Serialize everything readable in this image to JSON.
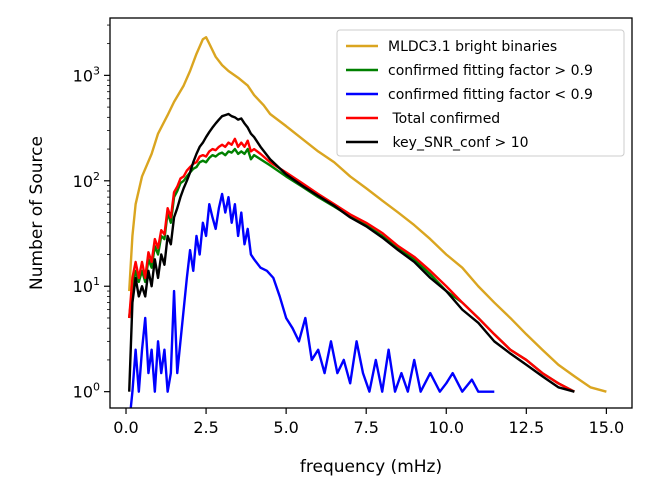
{
  "chart_data": {
    "type": "line",
    "xlabel": "frequency (mHz)",
    "ylabel": "Number of Source",
    "xlim": [
      -0.5,
      15.8
    ],
    "ylim": [
      0.7,
      3500
    ],
    "yscale": "log",
    "xticks": [
      0.0,
      2.5,
      5.0,
      7.5,
      10.0,
      12.5,
      15.0
    ],
    "xtick_labels": [
      "0.0",
      "2.5",
      "5.0",
      "7.5",
      "10.0",
      "12.5",
      "15.0"
    ],
    "yticks": [
      {
        "value": 1,
        "base": "10",
        "exp": "0"
      },
      {
        "value": 10,
        "base": "10",
        "exp": "1"
      },
      {
        "value": 100,
        "base": "10",
        "exp": "2"
      },
      {
        "value": 1000,
        "base": "10",
        "exp": "3"
      }
    ],
    "legend": {
      "placement": "top-right"
    },
    "series": [
      {
        "name": "MLDC3.1 bright binaries",
        "color": "#DAA520",
        "points": [
          [
            0.1,
            9
          ],
          [
            0.2,
            30
          ],
          [
            0.3,
            60
          ],
          [
            0.5,
            110
          ],
          [
            0.8,
            180
          ],
          [
            1.0,
            280
          ],
          [
            1.3,
            420
          ],
          [
            1.5,
            560
          ],
          [
            1.8,
            800
          ],
          [
            2.0,
            1100
          ],
          [
            2.2,
            1600
          ],
          [
            2.4,
            2200
          ],
          [
            2.5,
            2300
          ],
          [
            2.6,
            2000
          ],
          [
            2.8,
            1500
          ],
          [
            3.0,
            1250
          ],
          [
            3.2,
            1100
          ],
          [
            3.5,
            950
          ],
          [
            3.8,
            800
          ],
          [
            4.0,
            650
          ],
          [
            4.3,
            520
          ],
          [
            4.5,
            430
          ],
          [
            5.0,
            330
          ],
          [
            5.5,
            250
          ],
          [
            6.0,
            190
          ],
          [
            6.5,
            150
          ],
          [
            7.0,
            110
          ],
          [
            7.5,
            85
          ],
          [
            8.0,
            65
          ],
          [
            8.5,
            50
          ],
          [
            9.0,
            38
          ],
          [
            9.5,
            28
          ],
          [
            10.0,
            20
          ],
          [
            10.5,
            15
          ],
          [
            11.0,
            10
          ],
          [
            11.5,
            7
          ],
          [
            12.0,
            5
          ],
          [
            12.5,
            3.5
          ],
          [
            13.0,
            2.5
          ],
          [
            13.5,
            1.8
          ],
          [
            14.0,
            1.4
          ],
          [
            14.5,
            1.1
          ],
          [
            15.0,
            1.0
          ]
        ]
      },
      {
        "name": "confirmed fitting factor > 0.9",
        "color": "#008000",
        "points": [
          [
            0.1,
            5
          ],
          [
            0.2,
            10
          ],
          [
            0.3,
            14
          ],
          [
            0.4,
            11
          ],
          [
            0.5,
            14
          ],
          [
            0.6,
            11
          ],
          [
            0.7,
            18
          ],
          [
            0.8,
            15
          ],
          [
            0.9,
            24
          ],
          [
            1.0,
            20
          ],
          [
            1.1,
            30
          ],
          [
            1.2,
            28
          ],
          [
            1.3,
            50
          ],
          [
            1.4,
            40
          ],
          [
            1.5,
            70
          ],
          [
            1.6,
            80
          ],
          [
            1.7,
            95
          ],
          [
            1.8,
            100
          ],
          [
            1.9,
            110
          ],
          [
            2.0,
            120
          ],
          [
            2.1,
            130
          ],
          [
            2.2,
            135
          ],
          [
            2.3,
            150
          ],
          [
            2.4,
            155
          ],
          [
            2.5,
            150
          ],
          [
            2.6,
            165
          ],
          [
            2.7,
            175
          ],
          [
            2.8,
            170
          ],
          [
            2.9,
            180
          ],
          [
            3.0,
            185
          ],
          [
            3.1,
            175
          ],
          [
            3.2,
            190
          ],
          [
            3.3,
            185
          ],
          [
            3.4,
            200
          ],
          [
            3.5,
            180
          ],
          [
            3.6,
            190
          ],
          [
            3.7,
            180
          ],
          [
            3.8,
            200
          ],
          [
            3.9,
            160
          ],
          [
            4.0,
            175
          ],
          [
            4.2,
            160
          ],
          [
            4.5,
            140
          ],
          [
            5.0,
            110
          ],
          [
            5.5,
            88
          ],
          [
            6.0,
            70
          ],
          [
            6.5,
            57
          ],
          [
            7.0,
            46
          ],
          [
            7.5,
            38
          ],
          [
            8.0,
            30
          ],
          [
            8.5,
            23
          ],
          [
            9.0,
            18
          ],
          [
            9.5,
            13
          ],
          [
            10.0,
            9
          ],
          [
            10.5,
            7
          ],
          [
            11.0,
            5
          ],
          [
            11.5,
            3.5
          ],
          [
            12.0,
            2.5
          ],
          [
            12.5,
            2
          ],
          [
            13.0,
            1.5
          ],
          [
            13.5,
            1.2
          ],
          [
            14.0,
            1.0
          ]
        ]
      },
      {
        "name": "confirmed fitting factor < 0.9",
        "color": "#0000FF",
        "points": [
          [
            0.1,
            0.5
          ],
          [
            0.2,
            1
          ],
          [
            0.3,
            2.5
          ],
          [
            0.4,
            1
          ],
          [
            0.5,
            2.5
          ],
          [
            0.6,
            5
          ],
          [
            0.7,
            1.5
          ],
          [
            0.8,
            2.5
          ],
          [
            0.9,
            1
          ],
          [
            1.0,
            3
          ],
          [
            1.1,
            1.5
          ],
          [
            1.2,
            2.5
          ],
          [
            1.3,
            1
          ],
          [
            1.4,
            1.5
          ],
          [
            1.5,
            9
          ],
          [
            1.6,
            1.5
          ],
          [
            1.7,
            3
          ],
          [
            1.8,
            6
          ],
          [
            1.9,
            12
          ],
          [
            2.0,
            22
          ],
          [
            2.1,
            14
          ],
          [
            2.2,
            30
          ],
          [
            2.3,
            20
          ],
          [
            2.4,
            40
          ],
          [
            2.5,
            30
          ],
          [
            2.6,
            60
          ],
          [
            2.7,
            45
          ],
          [
            2.8,
            35
          ],
          [
            2.9,
            55
          ],
          [
            3.0,
            75
          ],
          [
            3.1,
            50
          ],
          [
            3.2,
            70
          ],
          [
            3.3,
            40
          ],
          [
            3.4,
            60
          ],
          [
            3.5,
            30
          ],
          [
            3.6,
            50
          ],
          [
            3.7,
            25
          ],
          [
            3.8,
            35
          ],
          [
            3.9,
            20
          ],
          [
            4.0,
            18
          ],
          [
            4.2,
            15
          ],
          [
            4.4,
            14
          ],
          [
            4.6,
            12
          ],
          [
            4.8,
            8
          ],
          [
            5.0,
            5
          ],
          [
            5.2,
            4
          ],
          [
            5.4,
            3
          ],
          [
            5.6,
            5
          ],
          [
            5.8,
            2
          ],
          [
            6.0,
            2.5
          ],
          [
            6.2,
            1.5
          ],
          [
            6.4,
            3
          ],
          [
            6.6,
            1.5
          ],
          [
            6.8,
            2
          ],
          [
            7.0,
            1.2
          ],
          [
            7.2,
            3
          ],
          [
            7.4,
            1.5
          ],
          [
            7.6,
            1
          ],
          [
            7.8,
            2
          ],
          [
            8.0,
            1
          ],
          [
            8.2,
            2.5
          ],
          [
            8.4,
            1
          ],
          [
            8.6,
            1.5
          ],
          [
            8.8,
            1
          ],
          [
            9.0,
            2
          ],
          [
            9.2,
            1
          ],
          [
            9.5,
            1.5
          ],
          [
            9.8,
            1
          ],
          [
            10.0,
            1.2
          ],
          [
            10.2,
            1.5
          ],
          [
            10.5,
            1
          ],
          [
            10.8,
            1.3
          ],
          [
            11.0,
            1
          ],
          [
            11.5,
            1
          ]
        ]
      },
      {
        "name": " Total confirmed",
        "color": "#FF0000",
        "points": [
          [
            0.1,
            5
          ],
          [
            0.2,
            12
          ],
          [
            0.3,
            17
          ],
          [
            0.4,
            12
          ],
          [
            0.5,
            17
          ],
          [
            0.6,
            12
          ],
          [
            0.7,
            21
          ],
          [
            0.8,
            17
          ],
          [
            0.9,
            28
          ],
          [
            1.0,
            23
          ],
          [
            1.1,
            34
          ],
          [
            1.2,
            31
          ],
          [
            1.3,
            55
          ],
          [
            1.4,
            45
          ],
          [
            1.5,
            78
          ],
          [
            1.6,
            88
          ],
          [
            1.7,
            105
          ],
          [
            1.8,
            110
          ],
          [
            1.9,
            125
          ],
          [
            2.0,
            135
          ],
          [
            2.1,
            145
          ],
          [
            2.2,
            150
          ],
          [
            2.3,
            170
          ],
          [
            2.4,
            175
          ],
          [
            2.5,
            170
          ],
          [
            2.6,
            190
          ],
          [
            2.7,
            200
          ],
          [
            2.8,
            195
          ],
          [
            2.9,
            210
          ],
          [
            3.0,
            220
          ],
          [
            3.1,
            210
          ],
          [
            3.2,
            230
          ],
          [
            3.3,
            220
          ],
          [
            3.4,
            250
          ],
          [
            3.5,
            210
          ],
          [
            3.6,
            230
          ],
          [
            3.7,
            210
          ],
          [
            3.8,
            240
          ],
          [
            3.9,
            190
          ],
          [
            4.0,
            200
          ],
          [
            4.2,
            180
          ],
          [
            4.5,
            150
          ],
          [
            5.0,
            120
          ],
          [
            5.5,
            95
          ],
          [
            6.0,
            75
          ],
          [
            6.5,
            60
          ],
          [
            7.0,
            48
          ],
          [
            7.5,
            40
          ],
          [
            8.0,
            32
          ],
          [
            8.5,
            24
          ],
          [
            9.0,
            19
          ],
          [
            9.5,
            14
          ],
          [
            10.0,
            10
          ],
          [
            10.5,
            7
          ],
          [
            11.0,
            5
          ],
          [
            11.5,
            3.5
          ],
          [
            12.0,
            2.5
          ],
          [
            12.5,
            2
          ],
          [
            13.0,
            1.5
          ],
          [
            13.5,
            1.2
          ],
          [
            14.0,
            1.0
          ]
        ]
      },
      {
        "name": " key_SNR_conf > 10",
        "color": "#000000",
        "points": [
          [
            0.1,
            1
          ],
          [
            0.2,
            7
          ],
          [
            0.3,
            12
          ],
          [
            0.4,
            8
          ],
          [
            0.5,
            10
          ],
          [
            0.6,
            8
          ],
          [
            0.7,
            14
          ],
          [
            0.8,
            10
          ],
          [
            0.9,
            18
          ],
          [
            1.0,
            12
          ],
          [
            1.1,
            20
          ],
          [
            1.2,
            16
          ],
          [
            1.3,
            30
          ],
          [
            1.4,
            25
          ],
          [
            1.5,
            45
          ],
          [
            1.6,
            55
          ],
          [
            1.7,
            70
          ],
          [
            1.8,
            85
          ],
          [
            1.9,
            100
          ],
          [
            2.0,
            120
          ],
          [
            2.1,
            150
          ],
          [
            2.2,
            180
          ],
          [
            2.3,
            210
          ],
          [
            2.4,
            230
          ],
          [
            2.5,
            260
          ],
          [
            2.6,
            290
          ],
          [
            2.7,
            320
          ],
          [
            2.8,
            350
          ],
          [
            2.9,
            380
          ],
          [
            3.0,
            410
          ],
          [
            3.1,
            420
          ],
          [
            3.2,
            430
          ],
          [
            3.3,
            410
          ],
          [
            3.4,
            400
          ],
          [
            3.5,
            380
          ],
          [
            3.6,
            390
          ],
          [
            3.7,
            350
          ],
          [
            3.8,
            320
          ],
          [
            3.9,
            280
          ],
          [
            4.0,
            260
          ],
          [
            4.2,
            210
          ],
          [
            4.5,
            160
          ],
          [
            5.0,
            115
          ],
          [
            5.5,
            90
          ],
          [
            6.0,
            72
          ],
          [
            6.5,
            58
          ],
          [
            7.0,
            45
          ],
          [
            7.5,
            37
          ],
          [
            8.0,
            29
          ],
          [
            8.5,
            22
          ],
          [
            9.0,
            17
          ],
          [
            9.5,
            12
          ],
          [
            10.0,
            9
          ],
          [
            10.5,
            6
          ],
          [
            11.0,
            4.5
          ],
          [
            11.5,
            3
          ],
          [
            12.0,
            2.3
          ],
          [
            12.5,
            1.8
          ],
          [
            13.0,
            1.4
          ],
          [
            13.5,
            1.1
          ],
          [
            14.0,
            1.0
          ]
        ]
      }
    ]
  }
}
